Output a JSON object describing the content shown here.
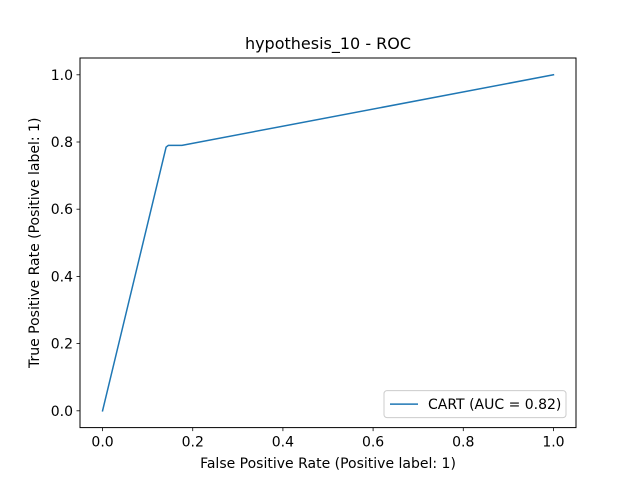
{
  "chart_data": {
    "type": "line",
    "title": "hypothesis_10 - ROC",
    "xlabel": "False Positive Rate (Positive label: 1)",
    "ylabel": "True Positive Rate (Positive label: 1)",
    "xlim": [
      -0.05,
      1.05
    ],
    "ylim": [
      -0.05,
      1.05
    ],
    "xticks": [
      0.0,
      0.2,
      0.4,
      0.6,
      0.8,
      1.0
    ],
    "yticks": [
      0.0,
      0.2,
      0.4,
      0.6,
      0.8,
      1.0
    ],
    "xtick_labels": [
      "0.0",
      "0.2",
      "0.4",
      "0.6",
      "0.8",
      "1.0"
    ],
    "ytick_labels": [
      "0.0",
      "0.2",
      "0.4",
      "0.6",
      "0.8",
      "1.0"
    ],
    "grid": false,
    "legend_position": "lower-right",
    "series": [
      {
        "name": "CART (AUC = 0.82)",
        "color": "#1f77b4",
        "x": [
          0.0,
          0.141,
          0.146,
          0.176,
          1.0
        ],
        "y": [
          0.0,
          0.785,
          0.79,
          0.79,
          1.0
        ]
      }
    ]
  }
}
